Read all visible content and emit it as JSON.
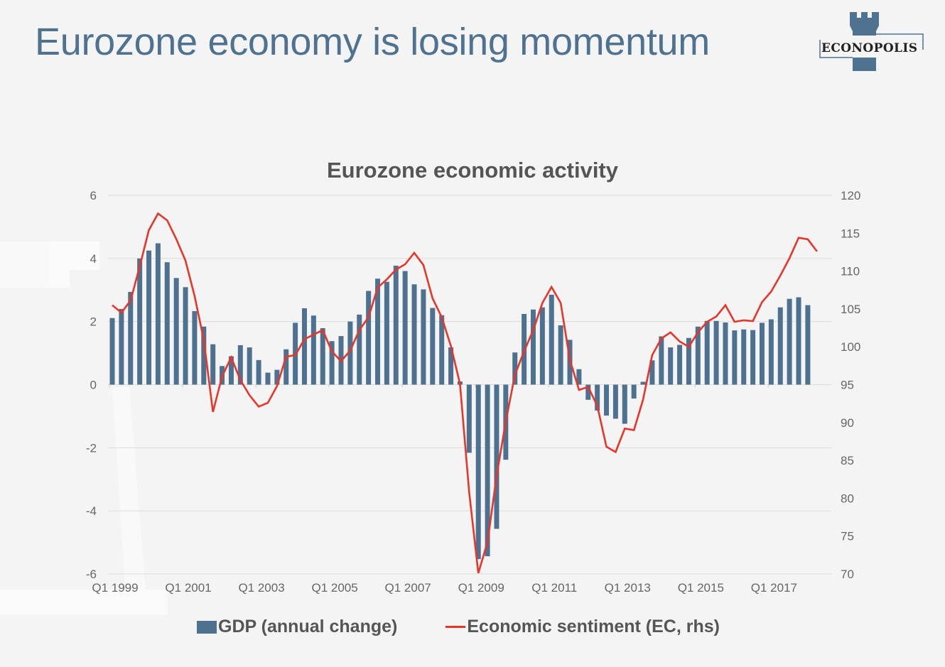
{
  "slide": {
    "title": "Eurozone economy is losing momentum",
    "logo_text": "ECONOPOLIS",
    "logo_icon": "castle-tower-icon",
    "colors": {
      "title": "#4f7291",
      "bar": "#4e7190",
      "line": "#e8352a",
      "background": "#f4f4f4"
    }
  },
  "chart_data": {
    "type": "bar+line",
    "title": "Eurozone economic activity",
    "xlabel": "",
    "ylabel": "",
    "y2label": "",
    "ylim": [
      -6,
      6
    ],
    "yticks": [
      "6",
      "4",
      "2",
      "0",
      "-2",
      "-4",
      "-6"
    ],
    "y2lim": [
      70,
      120
    ],
    "y2ticks": [
      "120",
      "115",
      "110",
      "105",
      "100",
      "95",
      "90",
      "85",
      "80",
      "75",
      "70"
    ],
    "x_start": "Q1 1999",
    "xtick_labels": [
      "Q1 1999",
      "Q1 2001",
      "Q1 2003",
      "Q1 2005",
      "Q1 2007",
      "Q1 2009",
      "Q1 2011",
      "Q1 2013",
      "Q1 2015",
      "Q1 2017"
    ],
    "xtick_every_quarters": 8,
    "grid": "horizontal",
    "legend_position": "bottom",
    "series": [
      {
        "name": "GDP (annual change)",
        "type": "bar",
        "axis": "left",
        "values": [
          2.11,
          2.4,
          2.94,
          4.0,
          4.25,
          4.48,
          3.88,
          3.38,
          3.09,
          2.33,
          1.84,
          1.28,
          0.59,
          0.9,
          1.25,
          1.18,
          0.78,
          0.38,
          0.47,
          1.12,
          1.96,
          2.42,
          2.19,
          1.79,
          1.38,
          1.54,
          2.0,
          2.22,
          2.97,
          3.36,
          3.26,
          3.77,
          3.6,
          3.18,
          3.02,
          2.43,
          2.2,
          1.18,
          0.1,
          -2.16,
          -5.53,
          -5.44,
          -4.57,
          -2.38,
          1.02,
          2.24,
          2.38,
          2.45,
          2.85,
          1.88,
          1.42,
          0.49,
          -0.48,
          -0.82,
          -0.98,
          -1.08,
          -1.24,
          -0.44,
          0.09,
          0.77,
          1.53,
          1.18,
          1.26,
          1.48,
          1.84,
          2.02,
          2.02,
          1.97,
          1.72,
          1.75,
          1.73,
          1.96,
          2.07,
          2.45,
          2.72,
          2.77,
          2.52
        ]
      },
      {
        "name": "Economic sentiment (EC, rhs)",
        "type": "line",
        "axis": "right",
        "values": [
          105.5,
          104.5,
          106.1,
          110.6,
          115.4,
          117.6,
          116.7,
          114.2,
          111.4,
          106.7,
          100.9,
          91.4,
          96.1,
          98.6,
          95.6,
          93.6,
          92.1,
          92.6,
          94.8,
          98.7,
          98.9,
          101.0,
          101.6,
          102.2,
          99.4,
          98.1,
          99.5,
          102.2,
          103.9,
          107.8,
          108.9,
          110.2,
          110.9,
          112.4,
          110.8,
          106.4,
          103.9,
          100.1,
          95.1,
          80.8,
          70.1,
          74.2,
          83.0,
          90.1,
          96.3,
          99.4,
          102.2,
          105.8,
          107.9,
          105.8,
          98.3,
          94.3,
          94.7,
          92.2,
          86.8,
          86.1,
          89.2,
          89.0,
          93.0,
          98.9,
          101.1,
          101.9,
          100.7,
          100.0,
          101.9,
          103.3,
          104.0,
          105.5,
          103.3,
          103.5,
          103.4,
          105.9,
          107.3,
          109.4,
          111.7,
          114.4,
          114.2,
          112.6
        ]
      }
    ]
  }
}
